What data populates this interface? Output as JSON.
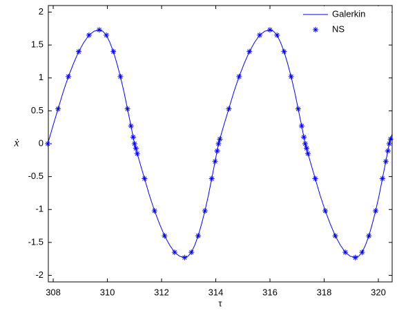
{
  "chart_data": {
    "type": "line",
    "x_label": "τ",
    "y_label": "ẋ",
    "xlim": [
      307.82,
      320.51
    ],
    "ylim": [
      -2.1,
      2.1
    ],
    "xticks": [
      308,
      310,
      312,
      314,
      316,
      318,
      320
    ],
    "yticks": [
      -2,
      -1.5,
      -1,
      -0.5,
      0,
      0.5,
      1,
      1.5,
      2
    ],
    "grid": false,
    "legend": "upper right",
    "series": [
      {
        "name": "Galerkin",
        "color": "#0000ff",
        "style": "line",
        "x": [
          307.8,
          307.99,
          308.18,
          308.37,
          308.56,
          308.75,
          308.94,
          309.13,
          309.32,
          309.51,
          309.7,
          309.83,
          309.96,
          310.09,
          310.22,
          310.35,
          310.48,
          310.61,
          310.74,
          310.87,
          311,
          311.185,
          311.37,
          311.555,
          311.74,
          311.925,
          312.11,
          312.295,
          312.48,
          312.665,
          312.85,
          312.975,
          313.1,
          313.225,
          313.35,
          313.475,
          313.6,
          313.725,
          313.85,
          313.975,
          314.1,
          314.29,
          314.48,
          314.67,
          314.86,
          315.05,
          315.24,
          315.43,
          315.62,
          315.81,
          316,
          316.13,
          316.26,
          316.39,
          316.52,
          316.65,
          316.78,
          316.91,
          317.04,
          317.17,
          317.3,
          317.485,
          317.67,
          317.855,
          318.04,
          318.225,
          318.41,
          318.595,
          318.78,
          318.965,
          319.15,
          319.275,
          319.4,
          319.525,
          319.65,
          319.775,
          319.9,
          320.025,
          320.15,
          320.275,
          320.4,
          320.5
        ],
        "values": [
          0,
          0.27,
          0.53,
          0.79,
          1.02,
          1.22,
          1.4,
          1.54,
          1.65,
          1.71,
          1.73,
          1.71,
          1.65,
          1.54,
          1.4,
          1.22,
          1.02,
          0.79,
          0.53,
          0.27,
          0,
          -0.27,
          -0.53,
          -0.79,
          -1.02,
          -1.22,
          -1.4,
          -1.54,
          -1.65,
          -1.71,
          -1.73,
          -1.71,
          -1.65,
          -1.54,
          -1.4,
          -1.22,
          -1.02,
          -0.79,
          -0.53,
          -0.27,
          0,
          0.27,
          0.53,
          0.79,
          1.02,
          1.22,
          1.4,
          1.54,
          1.65,
          1.71,
          1.73,
          1.71,
          1.65,
          1.54,
          1.4,
          1.22,
          1.02,
          0.79,
          0.53,
          0.27,
          0,
          -0.27,
          -0.53,
          -0.79,
          -1.02,
          -1.22,
          -1.4,
          -1.54,
          -1.65,
          -1.71,
          -1.73,
          -1.71,
          -1.65,
          -1.54,
          -1.4,
          -1.22,
          -1.02,
          -0.79,
          -0.53,
          -0.27,
          0,
          0.14
        ]
      },
      {
        "name": "NS",
        "color": "#0000ff",
        "style": "asterisk",
        "x": [
          307.8,
          308.18,
          308.56,
          308.94,
          309.32,
          309.7,
          309.96,
          310.22,
          310.48,
          310.74,
          310.87,
          310.95,
          311,
          311.05,
          311.1,
          311.37,
          311.74,
          312.11,
          312.48,
          312.85,
          313.1,
          313.35,
          313.6,
          313.85,
          313.975,
          314.05,
          314.1,
          314.15,
          314.48,
          314.86,
          315.24,
          315.62,
          316,
          316.26,
          316.52,
          316.78,
          317.04,
          317.17,
          317.25,
          317.3,
          317.35,
          317.4,
          317.67,
          318.04,
          318.41,
          318.78,
          319.15,
          319.4,
          319.65,
          319.9,
          320.15,
          320.275,
          320.35,
          320.4,
          320.45
        ],
        "values": [
          0,
          0.53,
          1.02,
          1.4,
          1.65,
          1.73,
          1.65,
          1.4,
          1.02,
          0.53,
          0.27,
          0.1,
          0,
          -0.07,
          -0.15,
          -0.53,
          -1.02,
          -1.4,
          -1.65,
          -1.73,
          -1.65,
          -1.4,
          -1.02,
          -0.53,
          -0.27,
          -0.11,
          0,
          0.07,
          0.53,
          1.02,
          1.4,
          1.65,
          1.73,
          1.65,
          1.4,
          1.02,
          0.53,
          0.27,
          0.1,
          0,
          -0.07,
          -0.15,
          -0.53,
          -1.02,
          -1.4,
          -1.65,
          -1.73,
          -1.65,
          -1.4,
          -1.02,
          -0.53,
          -0.27,
          -0.11,
          0,
          0.07
        ]
      }
    ]
  }
}
